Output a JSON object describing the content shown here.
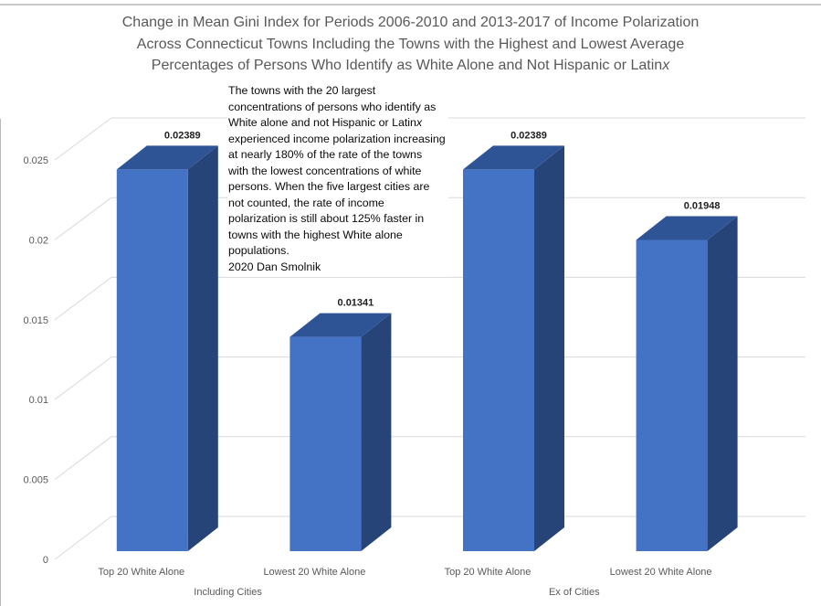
{
  "chart_data": {
    "type": "bar",
    "projection": "3d",
    "title": "Change in Mean Gini Index for Periods 2006-2010 and 2013-2017 of Income Polarization Across Connecticut Towns Including the Towns with the Highest and Lowest Average Percentages of Persons Who Identify as White Alone and Not Hispanic or Latinx",
    "title_lines": [
      "Change in Mean Gini Index for Periods 2006-2010 and 2013-2017 of Income Polarization",
      "Across Connecticut Towns Including the Towns with the Highest and Lowest Average",
      "Percentages of Persons Who Identify as White Alone and Not Hispanic or Latin"
    ],
    "latinx_italic": "x",
    "categories": [
      "Top 20 White Alone",
      "Lowest 20 White Alone",
      "Top 20 White Alone",
      "Lowest 20 White Alone"
    ],
    "group_labels": [
      "Including Cities",
      "Ex of Cities"
    ],
    "values": [
      0.02389,
      0.01341,
      0.02389,
      0.01948
    ],
    "data_labels": [
      "0.02389",
      "0.01341",
      "0.02389",
      "0.01948"
    ],
    "y_axis": {
      "range": [
        0,
        0.025
      ],
      "tick_values": [
        0,
        0.005,
        0.01,
        0.015,
        0.02,
        0.025
      ],
      "tick_labels": [
        "0",
        "0.005",
        "0.01",
        "0.015",
        "0.02",
        "0.025"
      ]
    },
    "grid": true,
    "legend": "none",
    "colors": {
      "bar_front": "#4472C4",
      "bar_top": "#2F5496",
      "bar_side": "#264478",
      "gridline": "#D9D9D9",
      "axis_text": "#595959",
      "data_label": "#1f1f1f",
      "title_text": "#595959"
    },
    "annotation": {
      "text": "The towns with the 20 largest concentrations of persons who identify as White alone and not Hispanic or Latinx experienced income polarization increasing at nearly 180% of the rate of the towns with the lowest concentrations of white persons. When the five largest cities are not counted, the rate of income polarization is still about 125% faster in towns with the highest White alone populations. 2020 Dan Smolnik",
      "lines": [
        "The towns with the 20 largest",
        "concentrations of persons who identify as",
        "White alone and not Hispanic or Latin",
        "experienced income polarization increasing",
        "at nearly 180% of the rate of the towns",
        "with the lowest concentrations of white",
        "persons. When the five largest cities are",
        "not counted, the rate of income",
        "polarization is still about 125% faster in",
        "towns with the highest White alone",
        "populations.",
        "2020 Dan Smolnik"
      ],
      "italic_suffix": "x"
    }
  }
}
